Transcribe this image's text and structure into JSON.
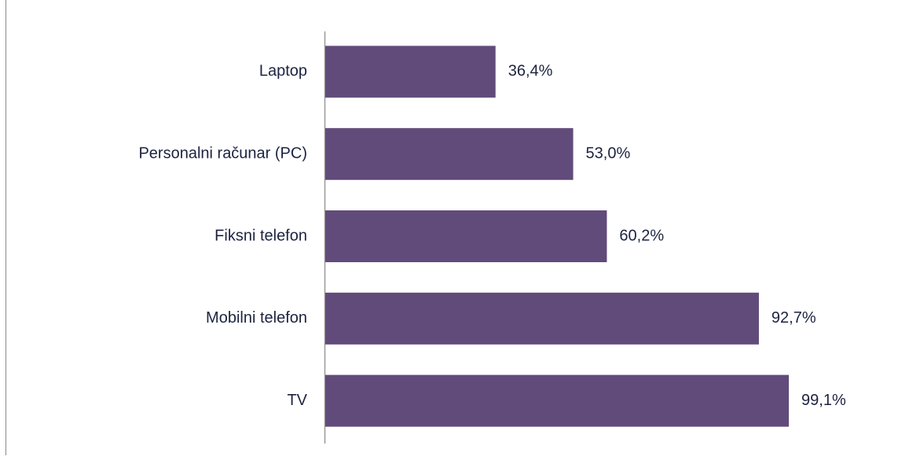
{
  "chart_data": {
    "type": "barh",
    "categories": [
      "Laptop",
      "Personalni računar (PC)",
      "Fiksni telefon",
      "Mobilni telefon",
      "TV"
    ],
    "values": [
      36.4,
      53.0,
      60.2,
      92.7,
      99.1
    ],
    "value_labels": [
      "36,4%",
      "53,0%",
      "60,2%",
      "92,7%",
      "99,1%"
    ],
    "color": "#614b7a"
  }
}
